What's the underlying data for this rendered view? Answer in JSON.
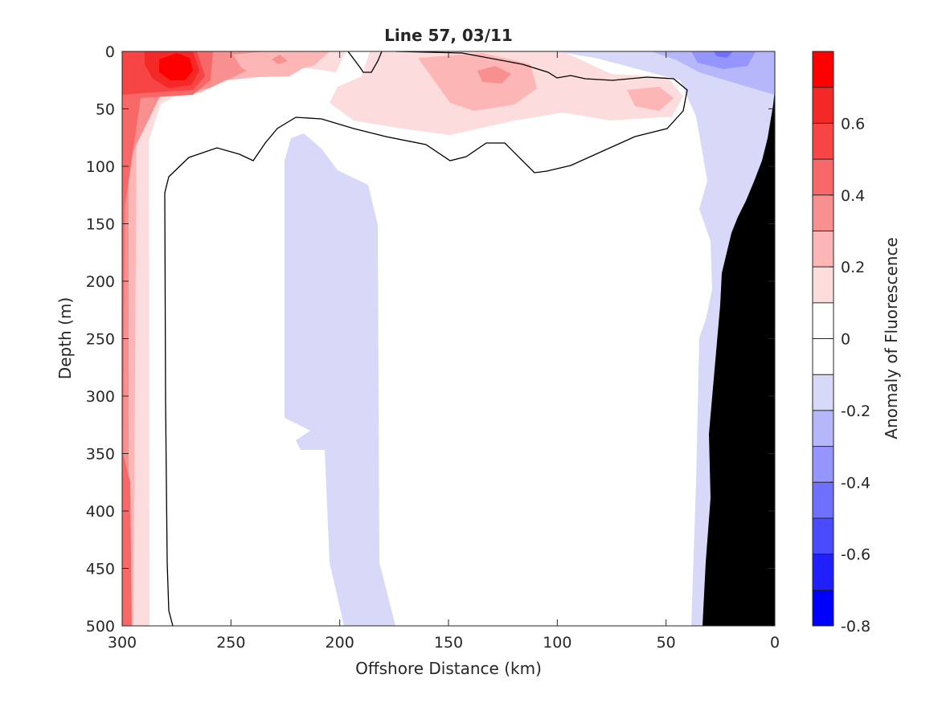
{
  "chart_data": {
    "type": "heatmap",
    "title": "Line 57, 03/11",
    "xlabel": "Offshore Distance (km)",
    "ylabel": "Depth (m)",
    "xlim": [
      300,
      0
    ],
    "ylim": [
      500,
      0
    ],
    "x_reversed": true,
    "y_reversed": true,
    "xticks": [
      "300",
      "250",
      "200",
      "150",
      "100",
      "50",
      "0"
    ],
    "yticks": [
      "0",
      "50",
      "100",
      "150",
      "200",
      "250",
      "300",
      "350",
      "400",
      "450",
      "500"
    ],
    "colorbar": {
      "label": "Anomaly of Fluorescence",
      "ticks": [
        "0.6",
        "0.4",
        "0.2",
        "0",
        "-0.2",
        "-0.4",
        "-0.6",
        "-0.8"
      ],
      "range": [
        -0.8,
        0.8
      ],
      "levels": [
        -0.8,
        -0.7,
        -0.6,
        -0.5,
        -0.4,
        -0.3,
        -0.2,
        -0.1,
        0,
        0.1,
        0.2,
        0.3,
        0.4,
        0.5,
        0.6,
        0.7,
        0.8
      ],
      "colors": [
        "#0000ff",
        "#2020ff",
        "#4a4aff",
        "#7070ff",
        "#9595ff",
        "#b6b6fa",
        "#d8d8f8",
        "#ffffff",
        "#ffffff",
        "#fcdcdc",
        "#fcb6b6",
        "#f99090",
        "#f86868",
        "#f74545",
        "#f52828",
        "#ff0000"
      ]
    },
    "features": {
      "zero_contour_color": "#000000",
      "bathymetry_color": "#000000"
    }
  }
}
